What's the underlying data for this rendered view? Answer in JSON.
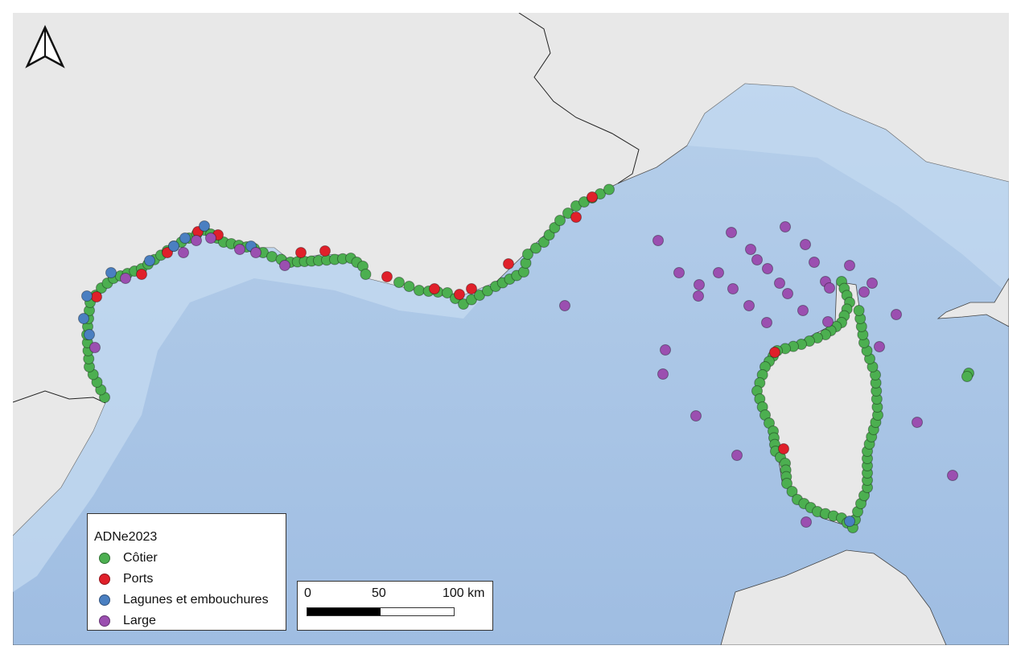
{
  "map": {
    "colors": {
      "land": "#e8e8e8",
      "sea": "#a9c6e6",
      "sea_shallow": "#c3d9ef",
      "border": "#222222"
    },
    "north_arrow_icon": "north-arrow-icon"
  },
  "legend": {
    "title": "ADNe2023",
    "items": [
      {
        "label": "Côtier",
        "color": "#4caf50"
      },
      {
        "label": "Ports",
        "color": "#e0202a"
      },
      {
        "label": "Lagunes et embouchures",
        "color": "#4a7fc1"
      },
      {
        "label": "Large",
        "color": "#9b4fb0"
      }
    ]
  },
  "scalebar": {
    "labels": [
      "0",
      "50",
      "100 km"
    ]
  }
}
